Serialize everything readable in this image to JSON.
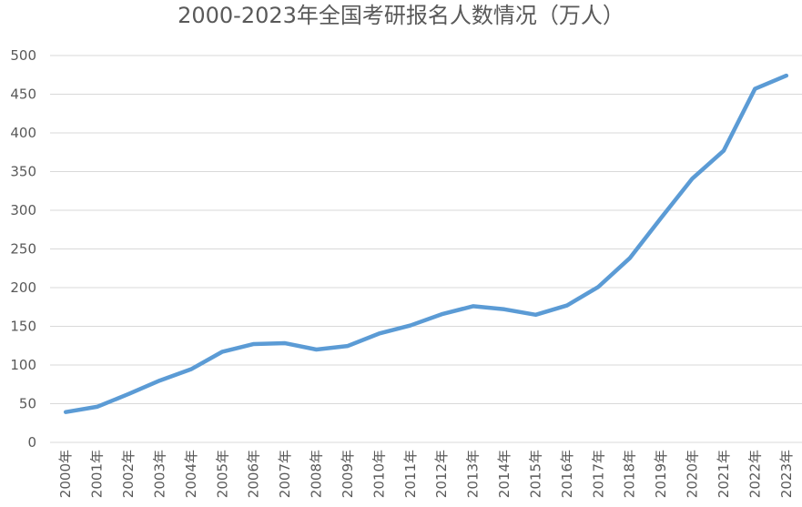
{
  "chart_data": {
    "type": "line",
    "title": "2000-2023年全国考研报名人数情况（万人）",
    "xlabel": "",
    "ylabel": "",
    "ylim": [
      0,
      500
    ],
    "yticks": [
      "0",
      "50",
      "100",
      "150",
      "200",
      "250",
      "300",
      "350",
      "400",
      "450",
      "500"
    ],
    "grid": true,
    "legend": "none",
    "categories": [
      "2000年",
      "2001年",
      "2002年",
      "2003年",
      "2004年",
      "2005年",
      "2006年",
      "2007年",
      "2008年",
      "2009年",
      "2010年",
      "2011年",
      "2012年",
      "2013年",
      "2014年",
      "2015年",
      "2016年",
      "2017年",
      "2018年",
      "2019年",
      "2020年",
      "2021年",
      "2022年",
      "2023年"
    ],
    "series": [
      {
        "color": "#5b9bd5",
        "values": [
          39.2,
          46,
          62.4,
          79.9,
          94.5,
          117.2,
          127.1,
          128.2,
          120,
          124.6,
          140.6,
          151.1,
          165.6,
          176,
          172,
          164.9,
          177,
          201,
          238,
          290,
          341,
          377,
          457,
          474
        ]
      }
    ]
  }
}
